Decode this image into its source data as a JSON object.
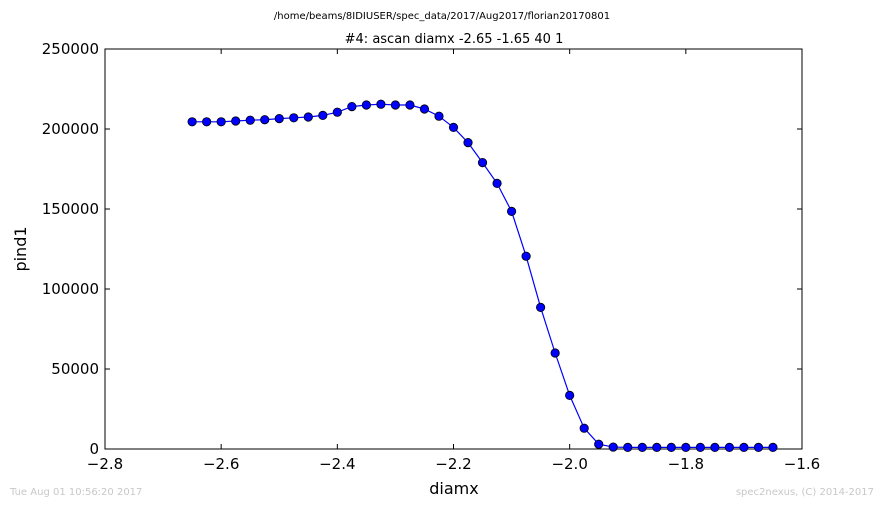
{
  "chart_data": {
    "type": "line",
    "suptitle": "/home/beams/8IDIUSER/spec_data/2017/Aug2017/florian20170801",
    "title": "#4: ascan  diamx -2.65 -1.65  40 1",
    "xlabel": "diamx",
    "ylabel": "pind1",
    "xlim": [
      -2.8,
      -1.6
    ],
    "ylim": [
      0,
      250000
    ],
    "xticks": [
      -2.8,
      -2.6,
      -2.4,
      -2.2,
      -2.0,
      -1.8,
      -1.6
    ],
    "xtick_labels": [
      "−2.8",
      "−2.6",
      "−2.4",
      "−2.2",
      "−2.0",
      "−1.8",
      "−1.6"
    ],
    "yticks": [
      0,
      50000,
      100000,
      150000,
      200000,
      250000
    ],
    "ytick_labels": [
      "0",
      "50000",
      "100000",
      "150000",
      "200000",
      "250000"
    ],
    "grid": false,
    "series": [
      {
        "color": "#0000ff",
        "marker": "circle",
        "x": [
          -2.65,
          -2.625,
          -2.6,
          -2.575,
          -2.55,
          -2.525,
          -2.5,
          -2.475,
          -2.45,
          -2.425,
          -2.4,
          -2.375,
          -2.35,
          -2.325,
          -2.3,
          -2.275,
          -2.25,
          -2.225,
          -2.2,
          -2.175,
          -2.15,
          -2.125,
          -2.1,
          -2.075,
          -2.05,
          -2.025,
          -2.0,
          -1.975,
          -1.95,
          -1.925,
          -1.9,
          -1.875,
          -1.85,
          -1.825,
          -1.8,
          -1.775,
          -1.75,
          -1.725,
          -1.7,
          -1.675,
          -1.65
        ],
        "y": [
          204500,
          204500,
          204500,
          205000,
          205500,
          205800,
          206500,
          207000,
          207500,
          208500,
          210500,
          214000,
          215000,
          215500,
          215000,
          215000,
          212500,
          208000,
          201000,
          191500,
          179000,
          166000,
          148500,
          120500,
          88500,
          60000,
          33500,
          13000,
          3000,
          1200,
          1000,
          1000,
          1000,
          1000,
          1000,
          1000,
          1000,
          1000,
          1000,
          1000,
          1000
        ]
      }
    ]
  },
  "footer": {
    "timestamp": "Tue Aug 01 10:56:20 2017",
    "credit": "spec2nexus, (C) 2014-2017"
  }
}
